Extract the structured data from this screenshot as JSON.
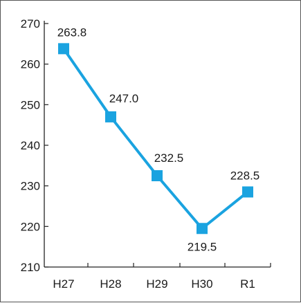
{
  "chart_data": {
    "type": "line",
    "categories": [
      "H27",
      "H28",
      "H29",
      "H30",
      "R1"
    ],
    "series": [
      {
        "values": [
          263.8,
          247.0,
          232.5,
          219.5,
          228.5
        ],
        "labels": [
          "263.8",
          "247.0",
          "232.5",
          "219.5",
          "228.5"
        ]
      }
    ],
    "yticks": [
      "210",
      "220",
      "230",
      "240",
      "250",
      "260",
      "270"
    ],
    "ylim": [
      210,
      270
    ],
    "title": "",
    "xlabel": "",
    "ylabel": "",
    "grid": false,
    "line_color": "#1aa3e0",
    "marker": "square"
  }
}
